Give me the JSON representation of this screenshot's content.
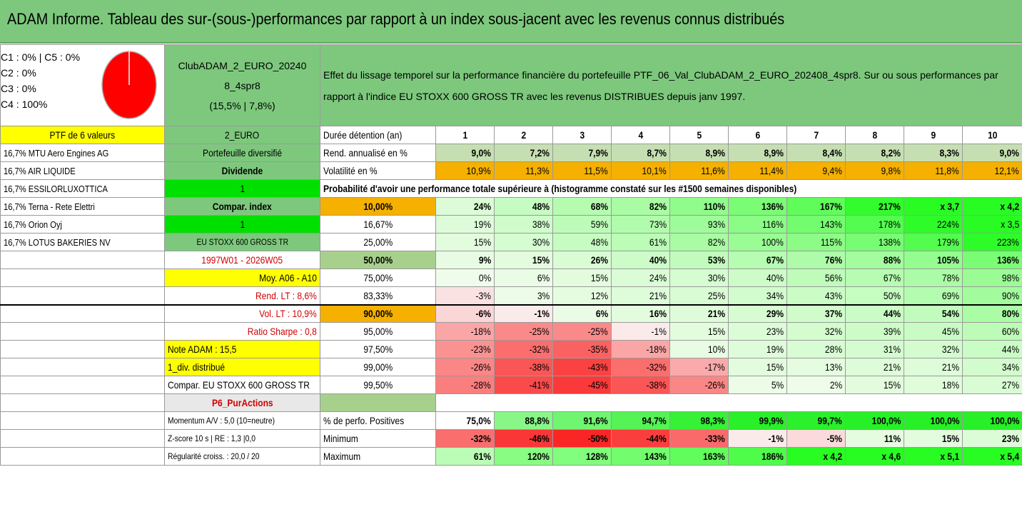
{
  "title": "ADAM Informe. Tableau des sur-(sous-)performances par rapport à un index sous-jacent avec les revenus connus distribués",
  "summary": {
    "pie_labels": [
      "C1 : 0% | C5 : 0%",
      "C2 : 0%",
      "C3 : 0%",
      "C4 : 100%"
    ],
    "pie_color": "#ff0000",
    "fund_lines": [
      "ClubADAM_2_EURO_20240",
      "8_4spr8",
      "(15,5% | 7,8%)"
    ],
    "description": "Effet du lissage temporel sur la performance financière du portefeuille PTF_06_Val_ClubADAM_2_EURO_202408_4spr8. Sur ou sous performances par rapport à l'indice EU STOXX 600 GROSS TR avec les revenus DISTRIBUES depuis janv 1997."
  },
  "left_col": [
    "PTF de 6 valeurs",
    "16,7% MTU Aero Engines AG",
    "16,7% AIR LIQUIDE",
    "16,7% ESSILORLUXOTTICA",
    "16,7% Terna - Rete Elettri",
    "16,7% Orion Oyj",
    "16,7% LOTUS BAKERIES NV"
  ],
  "mid_col": [
    "2_EURO",
    "Portefeuille diversifié",
    "Dividende",
    "1",
    "Compar. index",
    "1",
    "EU STOXX 600 GROSS TR",
    "1997W01 - 2026W05",
    "Moy. A06 - A10",
    "Rend. LT : 8,6%",
    "Vol. LT : 10,9%",
    "Ratio Sharpe : 0,8",
    "Note ADAM : 15,5",
    "1_div. distribué",
    "Compar. EU STOXX 600 GROSS TR",
    "P6_PurActions",
    "Momentum A/V : 5,0 (10=neutre)",
    "Z-score 10 s | RE : 1,3 |0,0",
    "Régularité croiss. : 20,0 / 20"
  ],
  "header": {
    "label": "Durée détention (an)",
    "years": [
      "1",
      "2",
      "3",
      "4",
      "5",
      "6",
      "7",
      "8",
      "9",
      "10"
    ]
  },
  "rend": {
    "label": "Rend. annualisé en %",
    "values": [
      "9,0%",
      "7,2%",
      "7,9%",
      "8,7%",
      "8,9%",
      "8,9%",
      "8,4%",
      "8,2%",
      "8,3%",
      "9,0%"
    ]
  },
  "vol": {
    "label": "Volatilité en %",
    "values": [
      "10,9%",
      "11,3%",
      "11,5%",
      "10,1%",
      "11,6%",
      "11,4%",
      "9,4%",
      "9,8%",
      "11,8%",
      "12,1%"
    ]
  },
  "prob_title": "Probabilité d'avoir une performance totale supérieure à (histogramme constaté sur les #1500 semaines disponibles)",
  "prob_rows": [
    {
      "pct": "10,00%",
      "values": [
        "24%",
        "48%",
        "68%",
        "82%",
        "110%",
        "136%",
        "167%",
        "217%",
        "x 3,7",
        "x 4,2"
      ]
    },
    {
      "pct": "16,67%",
      "values": [
        "19%",
        "38%",
        "59%",
        "73%",
        "93%",
        "116%",
        "143%",
        "178%",
        "224%",
        "x 3,5"
      ]
    },
    {
      "pct": "25,00%",
      "values": [
        "15%",
        "30%",
        "48%",
        "61%",
        "82%",
        "100%",
        "115%",
        "138%",
        "179%",
        "223%"
      ]
    },
    {
      "pct": "50,00%",
      "values": [
        "9%",
        "15%",
        "26%",
        "40%",
        "53%",
        "67%",
        "76%",
        "88%",
        "105%",
        "136%"
      ]
    },
    {
      "pct": "75,00%",
      "values": [
        "0%",
        "6%",
        "15%",
        "24%",
        "30%",
        "40%",
        "56%",
        "67%",
        "78%",
        "98%"
      ]
    },
    {
      "pct": "83,33%",
      "values": [
        "-3%",
        "3%",
        "12%",
        "21%",
        "25%",
        "34%",
        "43%",
        "50%",
        "69%",
        "90%"
      ]
    },
    {
      "pct": "90,00%",
      "values": [
        "-6%",
        "-1%",
        "6%",
        "16%",
        "21%",
        "29%",
        "37%",
        "44%",
        "54%",
        "80%"
      ]
    },
    {
      "pct": "95,00%",
      "values": [
        "-18%",
        "-25%",
        "-25%",
        "-1%",
        "15%",
        "23%",
        "32%",
        "39%",
        "45%",
        "60%"
      ]
    },
    {
      "pct": "97,50%",
      "values": [
        "-23%",
        "-32%",
        "-35%",
        "-18%",
        "10%",
        "19%",
        "28%",
        "31%",
        "32%",
        "44%"
      ]
    },
    {
      "pct": "99,00%",
      "values": [
        "-26%",
        "-38%",
        "-43%",
        "-32%",
        "-17%",
        "15%",
        "13%",
        "21%",
        "21%",
        "34%"
      ]
    },
    {
      "pct": "99,50%",
      "values": [
        "-28%",
        "-41%",
        "-45%",
        "-38%",
        "-26%",
        "5%",
        "2%",
        "15%",
        "18%",
        "27%"
      ]
    }
  ],
  "stats": [
    {
      "label": "% de perfo. Positives",
      "values": [
        "75,0%",
        "88,8%",
        "91,6%",
        "94,7%",
        "98,3%",
        "99,9%",
        "99,7%",
        "100,0%",
        "100,0%",
        "100,0%"
      ]
    },
    {
      "label": "Minimum",
      "values": [
        "-32%",
        "-46%",
        "-50%",
        "-44%",
        "-33%",
        "-1%",
        "-5%",
        "11%",
        "15%",
        "23%"
      ]
    },
    {
      "label": "Maximum",
      "values": [
        "61%",
        "120%",
        "128%",
        "143%",
        "163%",
        "186%",
        "x 4,2",
        "x 4,6",
        "x 5,1",
        "x 5,4"
      ]
    }
  ],
  "colors": {
    "title_bg": "#7dc87d",
    "yellow": "#ffff00",
    "orange": "#f5b000",
    "bright_green": "#00e000",
    "red_text": "#d00000"
  }
}
